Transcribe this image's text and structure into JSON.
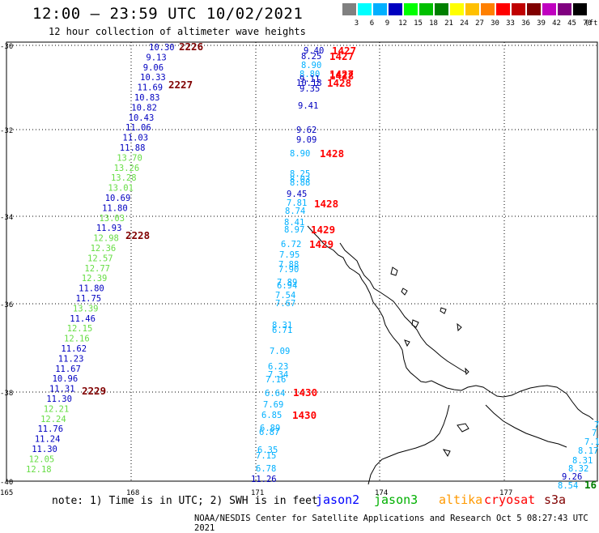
{
  "header": {
    "title": "12:00 — 23:59 UTC 10/02/2021",
    "subtitle": "12 hour collection of altimeter wave heights"
  },
  "legend": {
    "labels": [
      "3",
      "6",
      "9",
      "12",
      "15",
      "18",
      "21",
      "24",
      "27",
      "30",
      "33",
      "36",
      "39",
      "42",
      "45",
      "70",
      "(ft)"
    ],
    "colors": [
      "#808080",
      "#00ffff",
      "#00b0ff",
      "#0000c0",
      "#00ff00",
      "#00c000",
      "#008000",
      "#ffff00",
      "#ffc000",
      "#ff8000",
      "#ff0000",
      "#c00000",
      "#800000",
      "#c000c0",
      "#800080",
      "#000000"
    ]
  },
  "axes": {
    "lat_labels": [
      "-30",
      "-32",
      "-34",
      "-36",
      "-38",
      "-40"
    ],
    "lon_labels": [
      "165",
      "168",
      "171",
      "174",
      "177"
    ]
  },
  "tracks": [
    {
      "values": [
        {
          "t": "10.30",
          "c": "#0000c0"
        },
        {
          "t": "9.13",
          "c": "#0000c0"
        },
        {
          "t": "9.06",
          "c": "#0000c0"
        },
        {
          "t": "10.33",
          "c": "#0000c0"
        },
        {
          "t": "11.69",
          "c": "#0000c0"
        },
        {
          "t": "10.83",
          "c": "#0000c0"
        },
        {
          "t": "10.82",
          "c": "#0000c0"
        },
        {
          "t": "10.43",
          "c": "#0000c0"
        },
        {
          "t": "11.06",
          "c": "#0000c0"
        },
        {
          "t": "11.03",
          "c": "#0000c0"
        },
        {
          "t": "11.88",
          "c": "#0000c0"
        },
        {
          "t": "13.70",
          "c": "#66dd44"
        },
        {
          "t": "13.26",
          "c": "#66dd44"
        },
        {
          "t": "13.28",
          "c": "#66dd44"
        },
        {
          "t": "13.01",
          "c": "#66dd44"
        },
        {
          "t": "10.69",
          "c": "#0000c0"
        },
        {
          "t": "11.80",
          "c": "#0000c0"
        },
        {
          "t": "13.03",
          "c": "#66dd44"
        },
        {
          "t": "11.93",
          "c": "#0000c0"
        },
        {
          "t": "12.98",
          "c": "#66dd44"
        },
        {
          "t": "12.36",
          "c": "#66dd44"
        },
        {
          "t": "12.57",
          "c": "#66dd44"
        },
        {
          "t": "12.77",
          "c": "#66dd44"
        },
        {
          "t": "12.39",
          "c": "#66dd44"
        },
        {
          "t": "11.80",
          "c": "#0000c0"
        },
        {
          "t": "11.75",
          "c": "#0000c0"
        },
        {
          "t": "13.39",
          "c": "#66dd44"
        },
        {
          "t": "11.46",
          "c": "#0000c0"
        },
        {
          "t": "12.15",
          "c": "#66dd44"
        },
        {
          "t": "12.16",
          "c": "#66dd44"
        },
        {
          "t": "11.62",
          "c": "#0000c0"
        },
        {
          "t": "11.23",
          "c": "#0000c0"
        },
        {
          "t": "11.67",
          "c": "#0000c0"
        },
        {
          "t": "10.96",
          "c": "#0000c0"
        },
        {
          "t": "11.31",
          "c": "#0000c0"
        },
        {
          "t": "11.30",
          "c": "#0000c0"
        },
        {
          "t": "12.21",
          "c": "#66dd44"
        },
        {
          "t": "12.24",
          "c": "#66dd44"
        },
        {
          "t": "11.76",
          "c": "#0000c0"
        },
        {
          "t": "11.24",
          "c": "#0000c0"
        },
        {
          "t": "11.30",
          "c": "#0000c0"
        },
        {
          "t": "12.05",
          "c": "#66dd44"
        },
        {
          "t": "12.18",
          "c": "#66dd44"
        }
      ],
      "times": [
        {
          "t": "2226",
          "c": "#800000"
        },
        {
          "t": "2227",
          "c": "#800000"
        },
        {
          "t": "2228",
          "c": "#800000"
        },
        {
          "t": "2229",
          "c": "#800000"
        }
      ]
    },
    {
      "values": [
        {
          "t": "9.40",
          "c": "#0000c0"
        },
        {
          "t": "8.25",
          "c": "#0000c0"
        },
        {
          "t": "8.90",
          "c": "#00b0ff"
        },
        {
          "t": "8.80",
          "c": "#00b0ff"
        },
        {
          "t": "9.11",
          "c": "#0000c0"
        },
        {
          "t": "10.18",
          "c": "#0000c0"
        },
        {
          "t": "9.35",
          "c": "#0000c0"
        },
        {
          "t": "9.41",
          "c": "#0000c0"
        },
        {
          "t": "9.62",
          "c": "#0000c0"
        },
        {
          "t": "9.09",
          "c": "#0000c0"
        },
        {
          "t": "8.90",
          "c": "#00b0ff"
        },
        {
          "t": "8.25",
          "c": "#00b0ff"
        },
        {
          "t": "8.03",
          "c": "#00b0ff"
        },
        {
          "t": "8.88",
          "c": "#00b0ff"
        },
        {
          "t": "9.45",
          "c": "#0000c0"
        },
        {
          "t": "7.81",
          "c": "#00b0ff"
        },
        {
          "t": "8.74",
          "c": "#00b0ff"
        },
        {
          "t": "8.41",
          "c": "#00b0ff"
        },
        {
          "t": "8.97",
          "c": "#00b0ff"
        },
        {
          "t": "6.72",
          "c": "#00b0ff"
        },
        {
          "t": "7.95",
          "c": "#00b0ff"
        },
        {
          "t": "7.88",
          "c": "#00b0ff"
        },
        {
          "t": "7.90",
          "c": "#00b0ff"
        },
        {
          "t": "7.89",
          "c": "#00b0ff"
        },
        {
          "t": "6.94",
          "c": "#00b0ff"
        },
        {
          "t": "7.54",
          "c": "#00b0ff"
        },
        {
          "t": "7.67",
          "c": "#00b0ff"
        },
        {
          "t": "8.31",
          "c": "#00b0ff"
        },
        {
          "t": "6.71",
          "c": "#00b0ff"
        },
        {
          "t": "7.09",
          "c": "#00b0ff"
        },
        {
          "t": "6.23",
          "c": "#00b0ff"
        },
        {
          "t": "7.34",
          "c": "#00b0ff"
        },
        {
          "t": "7.16",
          "c": "#00b0ff"
        },
        {
          "t": "6.64",
          "c": "#00b0ff"
        },
        {
          "t": "7.69",
          "c": "#00b0ff"
        },
        {
          "t": "6.85",
          "c": "#00b0ff"
        },
        {
          "t": "6.89",
          "c": "#00b0ff"
        },
        {
          "t": "6.87",
          "c": "#00b0ff"
        },
        {
          "t": "6.35",
          "c": "#00b0ff"
        },
        {
          "t": "7.15",
          "c": "#00b0ff"
        },
        {
          "t": "6.78",
          "c": "#00b0ff"
        },
        {
          "t": "11.26",
          "c": "#0000c0"
        }
      ],
      "times": [
        {
          "t": "1427",
          "c": "#ff0000"
        },
        {
          "t": "1427",
          "c": "#ff0000"
        },
        {
          "t": "1427",
          "c": "#ff0000"
        },
        {
          "t": "1428",
          "c": "#ff0000"
        },
        {
          "t": "1428",
          "c": "#ff0000"
        },
        {
          "t": "1428",
          "c": "#ff0000"
        },
        {
          "t": "1428",
          "c": "#ff0000"
        },
        {
          "t": "1429",
          "c": "#ff0000"
        },
        {
          "t": "1429",
          "c": "#ff0000"
        },
        {
          "t": "1430",
          "c": "#ff0000"
        },
        {
          "t": "1430",
          "c": "#ff0000"
        }
      ]
    },
    {
      "values": [
        {
          "t": "7.",
          "c": "#00b0ff"
        },
        {
          "t": "7.",
          "c": "#00b0ff"
        },
        {
          "t": "7.1",
          "c": "#00b0ff"
        },
        {
          "t": "8.17",
          "c": "#00b0ff"
        },
        {
          "t": "8.31",
          "c": "#00b0ff"
        },
        {
          "t": "8.32",
          "c": "#00b0ff"
        },
        {
          "t": "9.26",
          "c": "#0000c0"
        },
        {
          "t": "8.54",
          "c": "#00b0ff"
        }
      ],
      "times": [
        {
          "t": "16",
          "c": "#008000"
        }
      ]
    }
  ],
  "footer": {
    "note": "note: 1) Time is in UTC; 2) SWH is in feet",
    "satellites": [
      {
        "name": "jason2",
        "color": "#0000ff"
      },
      {
        "name": "jason3",
        "color": "#00b000"
      },
      {
        "name": "altika",
        "color": "#ff9900"
      },
      {
        "name": "cryosat",
        "color": "#ff0000"
      },
      {
        "name": "s3a",
        "color": "#800000"
      }
    ],
    "credit": "NOAA/NESDIS Center for Satellite Applications and Research   Oct  5 08:27:43 UTC 2021"
  }
}
